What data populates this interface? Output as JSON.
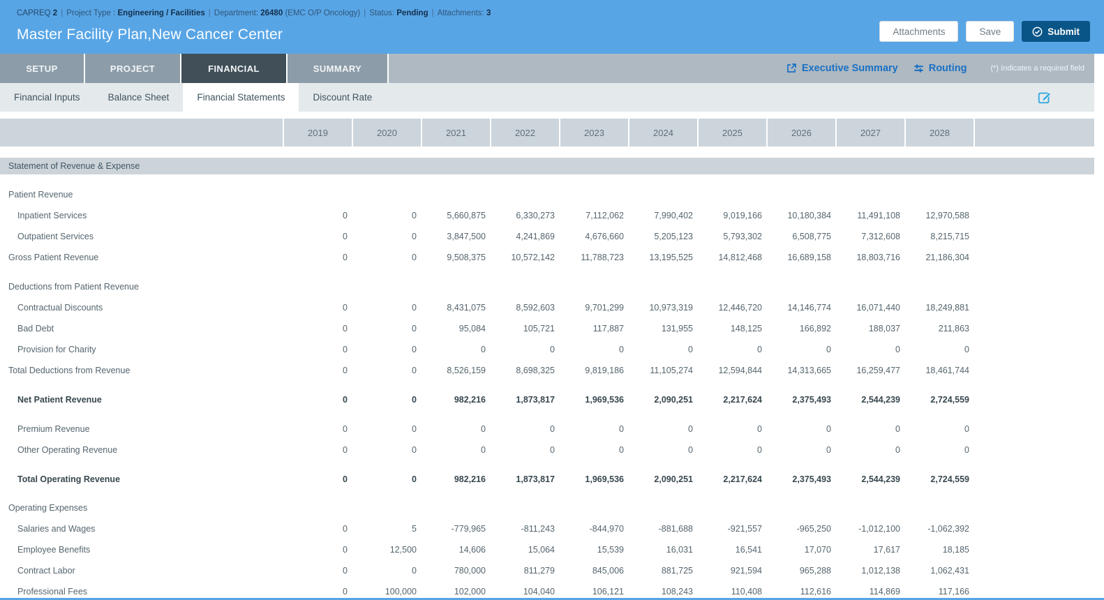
{
  "colors": {
    "header_blue": "#58a5e6",
    "submit_blue": "#0a5587",
    "link_blue": "#1a70c4",
    "tab_active": "#404f58",
    "tab_inactive": "#8c9ca8",
    "edit_icon_blue": "#2ea7dc",
    "grid_header_gray": "#ccd5db"
  },
  "header": {
    "meta": {
      "app": "CAPREQ",
      "app_number": "2",
      "separator": "|",
      "project_type_label": "Project Type :",
      "project_type": "Engineering / Facilities",
      "department_label": "Department:",
      "department_code": "26480",
      "department_name": "(EMC O/P Oncology)",
      "status_label": "Status:",
      "status": "Pending",
      "attachments_label": "Attachments:",
      "attachments_count": "3"
    },
    "title": "Master Facility Plan,New Cancer Center",
    "buttons": {
      "attachments": "Attachments",
      "save": "Save",
      "submit": "Submit"
    }
  },
  "tabs": {
    "items": [
      {
        "label": "SETUP",
        "active": false
      },
      {
        "label": "PROJECT",
        "active": false
      },
      {
        "label": "FINANCIAL",
        "active": true
      },
      {
        "label": "SUMMARY",
        "active": false
      }
    ],
    "links": {
      "executive_summary": "Executive Summary",
      "routing": "Routing"
    },
    "required_note": "(*) Indicates a required field"
  },
  "subtabs": {
    "items": [
      {
        "label": "Financial Inputs",
        "active": false
      },
      {
        "label": "Balance Sheet",
        "active": false
      },
      {
        "label": "Financial Statements",
        "active": true
      },
      {
        "label": "Discount Rate",
        "active": false
      }
    ]
  },
  "table": {
    "years": [
      "2019",
      "2020",
      "2021",
      "2022",
      "2023",
      "2024",
      "2025",
      "2026",
      "2027",
      "2028"
    ],
    "section_title": "Statement of Revenue & Expense",
    "rows": [
      {
        "type": "group",
        "label": "Patient Revenue",
        "values": []
      },
      {
        "type": "detail",
        "label": "Inpatient Services",
        "values": [
          "0",
          "0",
          "5,660,875",
          "6,330,273",
          "7,112,062",
          "7,990,402",
          "9,019,166",
          "10,180,384",
          "11,491,108",
          "12,970,588"
        ]
      },
      {
        "type": "detail",
        "label": "Outpatient Services",
        "values": [
          "0",
          "0",
          "3,847,500",
          "4,241,869",
          "4,676,660",
          "5,205,123",
          "5,793,302",
          "6,508,775",
          "7,312,608",
          "8,215,715"
        ]
      },
      {
        "type": "total",
        "label": "Gross Patient Revenue",
        "values": [
          "0",
          "0",
          "9,508,375",
          "10,572,142",
          "11,788,723",
          "13,195,525",
          "14,812,468",
          "16,689,158",
          "18,803,716",
          "21,186,304"
        ]
      },
      {
        "type": "spacer"
      },
      {
        "type": "group",
        "label": "Deductions from Patient Revenue",
        "values": []
      },
      {
        "type": "detail",
        "label": "Contractual Discounts",
        "values": [
          "0",
          "0",
          "8,431,075",
          "8,592,603",
          "9,701,299",
          "10,973,319",
          "12,446,720",
          "14,146,774",
          "16,071,440",
          "18,249,881"
        ]
      },
      {
        "type": "detail",
        "label": "Bad Debt",
        "values": [
          "0",
          "0",
          "95,084",
          "105,721",
          "117,887",
          "131,955",
          "148,125",
          "166,892",
          "188,037",
          "211,863"
        ]
      },
      {
        "type": "detail",
        "label": "Provision for Charity",
        "values": [
          "0",
          "0",
          "0",
          "0",
          "0",
          "0",
          "0",
          "0",
          "0",
          "0"
        ]
      },
      {
        "type": "total",
        "label": "Total Deductions from Revenue",
        "values": [
          "0",
          "0",
          "8,526,159",
          "8,698,325",
          "9,819,186",
          "11,105,274",
          "12,594,844",
          "14,313,665",
          "16,259,477",
          "18,461,744"
        ]
      },
      {
        "type": "spacer"
      },
      {
        "type": "bold",
        "label": "Net Patient Revenue",
        "values": [
          "0",
          "0",
          "982,216",
          "1,873,817",
          "1,969,536",
          "2,090,251",
          "2,217,624",
          "2,375,493",
          "2,544,239",
          "2,724,559"
        ]
      },
      {
        "type": "spacer"
      },
      {
        "type": "detail",
        "label": "Premium Revenue",
        "values": [
          "0",
          "0",
          "0",
          "0",
          "0",
          "0",
          "0",
          "0",
          "0",
          "0"
        ]
      },
      {
        "type": "detail",
        "label": "Other Operating Revenue",
        "values": [
          "0",
          "0",
          "0",
          "0",
          "0",
          "0",
          "0",
          "0",
          "0",
          "0"
        ]
      },
      {
        "type": "spacer"
      },
      {
        "type": "bold",
        "label": "Total Operating Revenue",
        "values": [
          "0",
          "0",
          "982,216",
          "1,873,817",
          "1,969,536",
          "2,090,251",
          "2,217,624",
          "2,375,493",
          "2,544,239",
          "2,724,559"
        ]
      },
      {
        "type": "spacer-sm"
      },
      {
        "type": "group",
        "label": "Operating Expenses",
        "values": []
      },
      {
        "type": "detail",
        "label": "Salaries and Wages",
        "values": [
          "0",
          "5",
          "-779,965",
          "-811,243",
          "-844,970",
          "-881,688",
          "-921,557",
          "-965,250",
          "-1,012,100",
          "-1,062,392"
        ]
      },
      {
        "type": "detail",
        "label": "Employee Benefits",
        "values": [
          "0",
          "12,500",
          "14,606",
          "15,064",
          "15,539",
          "16,031",
          "16,541",
          "17,070",
          "17,617",
          "18,185"
        ]
      },
      {
        "type": "detail",
        "label": "Contract Labor",
        "values": [
          "0",
          "0",
          "780,000",
          "811,279",
          "845,006",
          "881,725",
          "921,594",
          "965,288",
          "1,012,138",
          "1,062,431"
        ]
      },
      {
        "type": "detail",
        "label": "Professional Fees",
        "values": [
          "0",
          "100,000",
          "102,000",
          "104,040",
          "106,121",
          "108,243",
          "110,408",
          "112,616",
          "114,869",
          "117,166"
        ]
      }
    ]
  }
}
